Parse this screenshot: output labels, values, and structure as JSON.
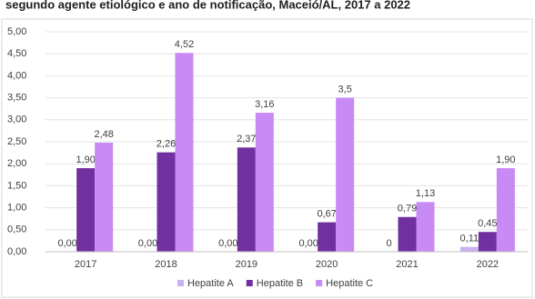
{
  "chart_data": {
    "type": "bar",
    "title": "segundo agente etiológico e ano de notificação, Maceió/AL, 2017 a 2022",
    "categories": [
      "2017",
      "2018",
      "2019",
      "2020",
      "2021",
      "2022"
    ],
    "series": [
      {
        "name": "Hepatite A",
        "color": "#c9b0f2",
        "values": [
          0,
          0,
          0,
          0,
          0,
          0.11
        ],
        "value_labels": [
          "0,00",
          "0,00",
          "0,00",
          "0,00",
          "0",
          "0,11"
        ]
      },
      {
        "name": "Hepatite B",
        "color": "#7030a0",
        "values": [
          1.9,
          2.26,
          2.37,
          0.67,
          0.79,
          0.45
        ],
        "value_labels": [
          "1,90",
          "2,26",
          "2,37",
          "0,67",
          "0,79",
          "0,45"
        ]
      },
      {
        "name": "Hepatite C",
        "color": "#c88af5",
        "values": [
          2.48,
          4.52,
          3.16,
          3.5,
          1.13,
          1.9
        ],
        "value_labels": [
          "2,48",
          "4,52",
          "3,16",
          "3,5",
          "1,13",
          "1,90"
        ]
      }
    ],
    "ylim": [
      0,
      5
    ],
    "yticks": [
      {
        "value": 0,
        "label": "0,00"
      },
      {
        "value": 0.5,
        "label": "0,50"
      },
      {
        "value": 1,
        "label": "1,00"
      },
      {
        "value": 1.5,
        "label": "1,50"
      },
      {
        "value": 2,
        "label": "2,00"
      },
      {
        "value": 2.5,
        "label": "2,50"
      },
      {
        "value": 3,
        "label": "3,00"
      },
      {
        "value": 3.5,
        "label": "3,50"
      },
      {
        "value": 4,
        "label": "4,00"
      },
      {
        "value": 4.5,
        "label": "4,50"
      },
      {
        "value": 5,
        "label": "5,00"
      }
    ],
    "grid": true,
    "legend": "bottom"
  }
}
